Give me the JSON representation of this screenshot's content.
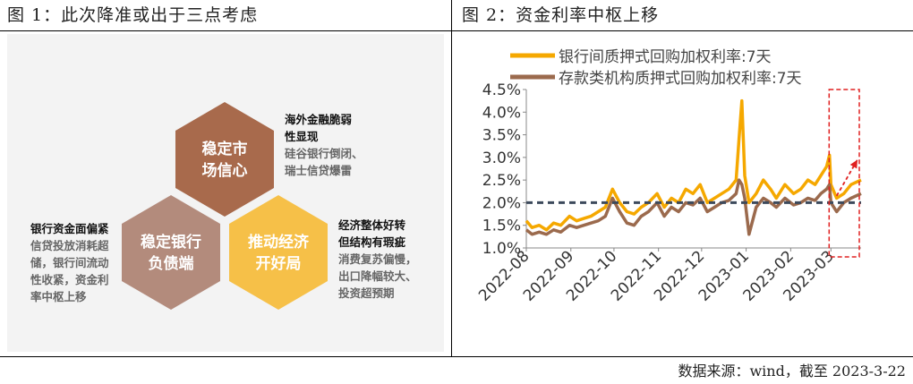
{
  "left_panel": {
    "title": "图 1：此次降准或出于三点考虑",
    "hexes": [
      {
        "label_line1": "稳定市",
        "label_line2": "场信心",
        "color": "#a86a4c"
      },
      {
        "label_line1": "稳定银行",
        "label_line2": "负债端",
        "color": "#b38b7c"
      },
      {
        "label_line1": "推动经济",
        "label_line2": "开好局",
        "color": "#f6c048"
      }
    ],
    "notes": {
      "top_right": {
        "heading": [
          "海外金融脆弱",
          "性显现"
        ],
        "body": [
          "硅谷银行倒闭、",
          "瑞士信贷爆雷"
        ]
      },
      "left": {
        "heading": [
          "银行资金面偏紧"
        ],
        "body": [
          "信贷投放消耗超",
          "储，银行间流动",
          "性收紧，资金利",
          "率中枢上移"
        ]
      },
      "bottom_right": {
        "heading": [
          "经济整体好转",
          "但结构有瑕疵"
        ],
        "body": [
          "消费复苏偏慢，",
          "出口降幅较大、",
          "投资超预期"
        ]
      }
    }
  },
  "right_panel": {
    "title": "图 2：资金利率中枢上移"
  },
  "footer": "数据来源：wind，截至 2023-3-22",
  "chart_data": {
    "type": "line",
    "title": "图 2：资金利率中枢上移",
    "xlabel": "",
    "ylabel": "",
    "ylim": [
      1.0,
      4.5
    ],
    "yticks": [
      "1.0%",
      "1.5%",
      "2.0%",
      "2.5%",
      "3.0%",
      "3.5%",
      "4.0%",
      "4.5%"
    ],
    "xticks": [
      "2022-08",
      "2022-09",
      "2022-10",
      "2022-11",
      "2022-12",
      "2023-01",
      "2023-02",
      "2023-03"
    ],
    "x_range": [
      "2022-08-01",
      "2023-03-22"
    ],
    "legend_position": "top",
    "grid": false,
    "series": [
      {
        "name": "银行间质押式回购加权利率:7天",
        "color": "#f5a800",
        "x": [
          "2022-08-01",
          "2022-08-05",
          "2022-08-10",
          "2022-08-15",
          "2022-08-20",
          "2022-08-25",
          "2022-08-31",
          "2022-09-05",
          "2022-09-10",
          "2022-09-15",
          "2022-09-20",
          "2022-09-25",
          "2022-09-30",
          "2022-10-05",
          "2022-10-10",
          "2022-10-15",
          "2022-10-20",
          "2022-10-25",
          "2022-10-31",
          "2022-11-05",
          "2022-11-10",
          "2022-11-15",
          "2022-11-20",
          "2022-11-25",
          "2022-11-30",
          "2022-12-05",
          "2022-12-10",
          "2022-12-15",
          "2022-12-20",
          "2022-12-25",
          "2022-12-27",
          "2022-12-29",
          "2022-12-31",
          "2023-01-03",
          "2023-01-08",
          "2023-01-13",
          "2023-01-18",
          "2023-01-22",
          "2023-01-28",
          "2023-02-03",
          "2023-02-08",
          "2023-02-13",
          "2023-02-18",
          "2023-02-22",
          "2023-02-26",
          "2023-02-28",
          "2023-03-01",
          "2023-03-05",
          "2023-03-10",
          "2023-03-15",
          "2023-03-22"
        ],
        "values": [
          1.6,
          1.45,
          1.5,
          1.4,
          1.55,
          1.5,
          1.7,
          1.6,
          1.65,
          1.7,
          1.8,
          1.9,
          2.3,
          2.0,
          1.8,
          1.75,
          1.9,
          2.0,
          2.2,
          1.9,
          2.1,
          2.0,
          2.3,
          2.2,
          2.4,
          2.0,
          2.1,
          2.2,
          2.3,
          2.5,
          3.4,
          4.25,
          2.6,
          2.0,
          2.2,
          2.5,
          2.3,
          2.1,
          2.4,
          2.2,
          2.3,
          2.5,
          2.4,
          2.6,
          2.8,
          3.05,
          2.4,
          2.1,
          2.2,
          2.4,
          2.5
        ]
      },
      {
        "name": "存款类机构质押式回购加权利率:7天",
        "color": "#9b6a4d",
        "x": [
          "2022-08-01",
          "2022-08-05",
          "2022-08-10",
          "2022-08-15",
          "2022-08-20",
          "2022-08-25",
          "2022-08-31",
          "2022-09-05",
          "2022-09-10",
          "2022-09-15",
          "2022-09-20",
          "2022-09-25",
          "2022-09-30",
          "2022-10-05",
          "2022-10-10",
          "2022-10-15",
          "2022-10-20",
          "2022-10-25",
          "2022-10-31",
          "2022-11-05",
          "2022-11-10",
          "2022-11-15",
          "2022-11-20",
          "2022-11-25",
          "2022-11-30",
          "2022-12-05",
          "2022-12-10",
          "2022-12-15",
          "2022-12-20",
          "2022-12-25",
          "2022-12-27",
          "2022-12-29",
          "2022-12-31",
          "2023-01-03",
          "2023-01-08",
          "2023-01-13",
          "2023-01-18",
          "2023-01-22",
          "2023-01-28",
          "2023-02-03",
          "2023-02-08",
          "2023-02-13",
          "2023-02-18",
          "2023-02-22",
          "2023-02-26",
          "2023-02-28",
          "2023-03-01",
          "2023-03-05",
          "2023-03-10",
          "2023-03-15",
          "2023-03-22"
        ],
        "values": [
          1.4,
          1.3,
          1.35,
          1.3,
          1.4,
          1.35,
          1.5,
          1.45,
          1.5,
          1.55,
          1.6,
          1.7,
          2.1,
          1.8,
          1.55,
          1.5,
          1.7,
          1.8,
          2.0,
          1.7,
          1.9,
          1.8,
          2.0,
          1.95,
          2.1,
          1.8,
          1.9,
          2.0,
          2.05,
          2.2,
          2.5,
          2.4,
          2.1,
          1.3,
          1.9,
          2.1,
          2.0,
          1.9,
          2.1,
          1.95,
          2.0,
          2.1,
          2.05,
          2.2,
          2.3,
          2.4,
          2.0,
          1.8,
          2.0,
          2.1,
          2.2
        ]
      },
      {
        "name": "",
        "color": "#3d4a5c",
        "dashed": true,
        "x": [
          "2022-08-01",
          "2023-03-22"
        ],
        "values": [
          2.0,
          2.0
        ]
      }
    ],
    "annotations": [
      {
        "type": "highlight-box",
        "from": "2023-03-01",
        "to": "2023-03-22",
        "color": "#e02020"
      }
    ]
  }
}
